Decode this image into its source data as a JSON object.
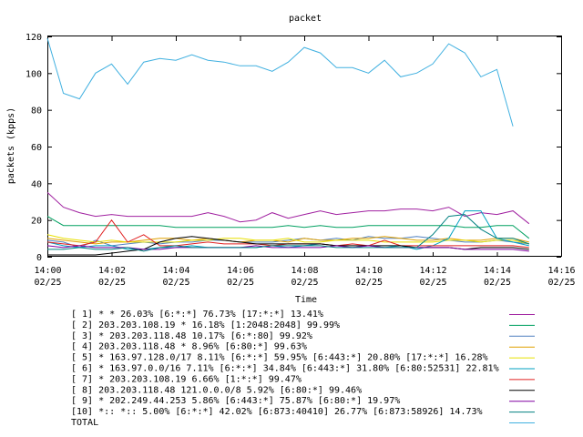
{
  "chart_data": {
    "type": "line",
    "title": "packet",
    "xlabel": "Time",
    "ylabel": "packets (kpps)",
    "xlim": [
      "14:00",
      "14:16"
    ],
    "ylim": [
      0,
      120
    ],
    "grid": false,
    "legend_position": "bottom",
    "x_ticks": [
      {
        "time": "14:00",
        "date": "02/25"
      },
      {
        "time": "14:02",
        "date": "02/25"
      },
      {
        "time": "14:04",
        "date": "02/25"
      },
      {
        "time": "14:06",
        "date": "02/25"
      },
      {
        "time": "14:08",
        "date": "02/25"
      },
      {
        "time": "14:10",
        "date": "02/25"
      },
      {
        "time": "14:12",
        "date": "02/25"
      },
      {
        "time": "14:14",
        "date": "02/25"
      },
      {
        "time": "14:16",
        "date": "02/25"
      }
    ],
    "y_ticks": [
      0,
      20,
      40,
      60,
      80,
      100,
      120
    ],
    "x": [
      "14:00:00",
      "14:00:30",
      "14:01:00",
      "14:01:30",
      "14:02:00",
      "14:02:30",
      "14:03:00",
      "14:03:30",
      "14:04:00",
      "14:04:30",
      "14:05:00",
      "14:05:30",
      "14:06:00",
      "14:06:30",
      "14:07:00",
      "14:07:30",
      "14:08:00",
      "14:08:30",
      "14:09:00",
      "14:09:30",
      "14:10:00",
      "14:10:30",
      "14:11:00",
      "14:11:30",
      "14:12:00",
      "14:12:30",
      "14:13:00",
      "14:13:30",
      "14:14:00",
      "14:14:30",
      "14:15:00"
    ],
    "series": [
      {
        "name": "[ 1] * * 26.03%  [6:*:*] 76.73% [17:*:*] 13.41%",
        "color": "#a020a0",
        "values": [
          35,
          27,
          24,
          22,
          23,
          22,
          22,
          22,
          22,
          22,
          24,
          22,
          19,
          20,
          24,
          21,
          23,
          25,
          23,
          24,
          25,
          25,
          26,
          26,
          25,
          27,
          22,
          24,
          23,
          25,
          18
        ]
      },
      {
        "name": "[ 2] 203.203.108.19 * 16.18%  [1:2048:2048] 99.99%",
        "color": "#00a060",
        "values": [
          22,
          17,
          17,
          17,
          17,
          17,
          17,
          17,
          16,
          16,
          16,
          16,
          16,
          16,
          16,
          17,
          16,
          17,
          16,
          16,
          17,
          17,
          17,
          17,
          17,
          17,
          16,
          16,
          17,
          17,
          10
        ]
      },
      {
        "name": "[ 3] * 203.203.118.48 10.17%  [6:*:80] 99.92%",
        "color": "#5080c0",
        "values": [
          9,
          8,
          5,
          9,
          6,
          7,
          8,
          7,
          8,
          8,
          9,
          9,
          8,
          8,
          8,
          9,
          10,
          9,
          10,
          9,
          11,
          10,
          10,
          11,
          10,
          9,
          8,
          8,
          9,
          8,
          7
        ]
      },
      {
        "name": "[ 4] 203.203.118.48 * 8.96%  [6:80:*] 99.63%",
        "color": "#e0a000",
        "values": [
          10,
          9,
          8,
          7,
          8,
          8,
          9,
          10,
          10,
          9,
          10,
          9,
          8,
          9,
          9,
          8,
          10,
          9,
          9,
          10,
          10,
          11,
          10,
          9,
          9,
          10,
          9,
          9,
          10,
          10,
          8
        ]
      },
      {
        "name": "[ 5] * 163.97.128.0/17 8.11%  [6:*:*] 59.95% [6:443:*] 20.80% [17:*:*] 16.28%",
        "color": "#e8e000",
        "values": [
          12,
          10,
          9,
          8,
          9,
          8,
          8,
          8,
          8,
          9,
          9,
          10,
          10,
          9,
          9,
          10,
          8,
          8,
          9,
          9,
          9,
          8,
          8,
          8,
          8,
          9,
          9,
          8,
          9,
          9,
          7
        ]
      },
      {
        "name": "[ 6] * 163.97.0.0/16 7.11%  [6:*:*] 34.84% [6:443:*] 31.80% [6:80:52531] 22.81%",
        "color": "#00a0c0",
        "values": [
          8,
          6,
          5,
          6,
          6,
          4,
          4,
          5,
          5,
          6,
          5,
          5,
          5,
          5,
          6,
          5,
          6,
          7,
          6,
          5,
          6,
          5,
          6,
          4,
          6,
          10,
          25,
          25,
          10,
          8,
          6
        ]
      },
      {
        "name": "[ 7] * 203.203.108.19 6.66%  [1:*:*] 99.47%",
        "color": "#e02020",
        "values": [
          8,
          7,
          6,
          8,
          20,
          8,
          12,
          6,
          6,
          7,
          8,
          7,
          7,
          7,
          6,
          7,
          7,
          7,
          6,
          7,
          6,
          9,
          6,
          6,
          6,
          6,
          6,
          6,
          6,
          6,
          5
        ]
      },
      {
        "name": "[ 8] 203.203.118.48 121.0.0.0/8 5.92%  [6:80:*] 99.46%",
        "color": "#000000",
        "values": [
          1,
          1,
          1,
          1,
          2,
          3,
          4,
          8,
          10,
          11,
          10,
          9,
          8,
          7,
          7,
          7,
          7,
          7,
          6,
          6,
          6,
          6,
          6,
          5,
          5,
          5,
          4,
          5,
          5,
          5,
          4
        ]
      },
      {
        "name": "[ 9] * 202.249.44.253 5.86%  [6:443:*] 75.87% [6:80:*] 19.97%",
        "color": "#8000a0",
        "values": [
          6,
          5,
          6,
          5,
          5,
          5,
          4,
          4,
          5,
          5,
          5,
          5,
          5,
          6,
          5,
          5,
          5,
          5,
          6,
          5,
          6,
          5,
          5,
          5,
          5,
          5,
          4,
          4,
          4,
          4,
          3
        ]
      },
      {
        "name": "[10] *:: *:: 5.00%  [6:*:*] 42.02% [6:873:40410] 26.77% [6:873:58926] 14.73%",
        "color": "#008080",
        "values": [
          4,
          4,
          5,
          4,
          4,
          5,
          3,
          5,
          6,
          5,
          5,
          5,
          5,
          5,
          6,
          6,
          6,
          6,
          5,
          5,
          5,
          5,
          5,
          5,
          12,
          22,
          23,
          15,
          10,
          10,
          7
        ]
      },
      {
        "name": "TOTAL",
        "color": "#40b0e0",
        "values": [
          119,
          89,
          86,
          100,
          105,
          94,
          106,
          108,
          107,
          110,
          107,
          106,
          104,
          104,
          101,
          106,
          114,
          111,
          103,
          103,
          100,
          107,
          98,
          100,
          105,
          116,
          111,
          98,
          102,
          71,
          null
        ]
      }
    ]
  }
}
